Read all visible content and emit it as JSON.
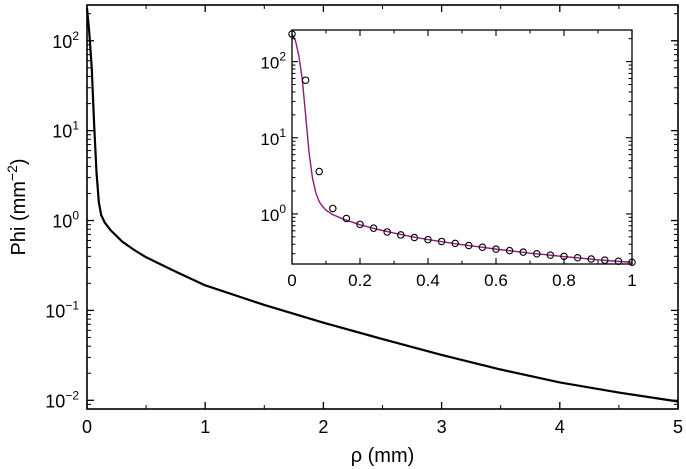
{
  "chart_data": [
    {
      "type": "line",
      "xlabel": "ρ (mm)",
      "ylabel_base": "Phi (mm",
      "ylabel_exp": "−2",
      "ylabel_tail": ")",
      "xlim": [
        0,
        5
      ],
      "ylim": [
        0.008,
        250
      ],
      "yscale": "log",
      "grid": false,
      "x_ticks": [
        0,
        1,
        2,
        3,
        4,
        5
      ],
      "y_ticks": [
        {
          "value": 100,
          "base": "10",
          "exp": "2"
        },
        {
          "value": 10,
          "base": "10",
          "exp": "1"
        },
        {
          "value": 1,
          "base": "10",
          "exp": "0"
        },
        {
          "value": 0.1,
          "base": "10",
          "exp": "−1"
        },
        {
          "value": 0.01,
          "base": "10",
          "exp": "−2"
        }
      ],
      "series": [
        {
          "color": "#000000",
          "x": [
            0,
            0.02,
            0.04,
            0.06,
            0.08,
            0.1,
            0.12,
            0.15,
            0.2,
            0.3,
            0.4,
            0.5,
            0.75,
            1.0,
            1.5,
            2.0,
            2.5,
            3.0,
            3.5,
            4.0,
            4.5,
            5.0
          ],
          "y": [
            230,
            120,
            50,
            12,
            3.5,
            1.6,
            1.15,
            0.95,
            0.78,
            0.58,
            0.47,
            0.39,
            0.27,
            0.19,
            0.115,
            0.073,
            0.048,
            0.032,
            0.022,
            0.0158,
            0.0122,
            0.0097
          ]
        }
      ]
    },
    {
      "type": "line",
      "role": "inset",
      "xlim": [
        0,
        1
      ],
      "ylim": [
        0.22,
        260
      ],
      "yscale": "log",
      "grid": false,
      "x_ticks": [
        {
          "value": 0,
          "label": "0"
        },
        {
          "value": 0.2,
          "label": "0.2"
        },
        {
          "value": 0.4,
          "label": "0.4"
        },
        {
          "value": 0.6,
          "label": "0.6"
        },
        {
          "value": 0.8,
          "label": "0.8"
        },
        {
          "value": 1,
          "label": "1"
        }
      ],
      "y_ticks": [
        {
          "value": 100,
          "base": "10",
          "exp": "2"
        },
        {
          "value": 10,
          "base": "10",
          "exp": "1"
        },
        {
          "value": 1,
          "base": "10",
          "exp": "0"
        }
      ],
      "series": [
        {
          "kind": "line",
          "color": "#8e1a7e",
          "x": [
            0,
            0.01,
            0.02,
            0.03,
            0.04,
            0.05,
            0.06,
            0.07,
            0.08,
            0.09,
            0.1,
            0.12,
            0.15,
            0.2,
            0.25,
            0.3,
            0.35,
            0.4,
            0.45,
            0.5,
            0.55,
            0.6,
            0.65,
            0.7,
            0.75,
            0.8,
            0.85,
            0.9,
            0.95,
            1.0
          ],
          "y": [
            230,
            190,
            120,
            60,
            20,
            6.5,
            3.0,
            1.9,
            1.45,
            1.25,
            1.12,
            0.98,
            0.86,
            0.72,
            0.63,
            0.56,
            0.505,
            0.46,
            0.425,
            0.395,
            0.37,
            0.345,
            0.325,
            0.305,
            0.29,
            0.275,
            0.262,
            0.25,
            0.24,
            0.232
          ]
        },
        {
          "kind": "markers",
          "color": "#000000",
          "x": [
            0,
            0.04,
            0.08,
            0.12,
            0.16,
            0.2,
            0.24,
            0.28,
            0.32,
            0.36,
            0.4,
            0.44,
            0.48,
            0.52,
            0.56,
            0.6,
            0.64,
            0.68,
            0.72,
            0.76,
            0.8,
            0.84,
            0.88,
            0.92,
            0.96,
            1.0
          ],
          "y": [
            230,
            57,
            3.6,
            1.18,
            0.87,
            0.73,
            0.65,
            0.58,
            0.53,
            0.49,
            0.46,
            0.435,
            0.41,
            0.385,
            0.365,
            0.345,
            0.33,
            0.315,
            0.3,
            0.288,
            0.277,
            0.266,
            0.256,
            0.247,
            0.239,
            0.232
          ]
        }
      ]
    }
  ]
}
